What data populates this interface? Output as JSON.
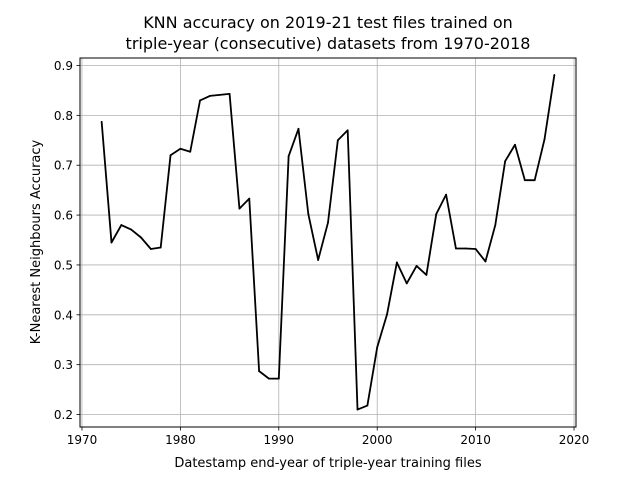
{
  "chart_data": {
    "type": "line",
    "title_lines": [
      "KNN accuracy on 2019-21 test files trained on",
      "triple-year (consecutive) datasets from 1970-2018"
    ],
    "xlabel": "Datestamp end-year of triple-year training files",
    "ylabel": "K-Nearest Neighbours Accuracy",
    "xlim": [
      1969.8,
      2020.2
    ],
    "ylim": [
      0.175,
      0.915
    ],
    "xticks": [
      1970,
      1980,
      1990,
      2000,
      2010,
      2020
    ],
    "xtick_labels": [
      "1970",
      "1980",
      "1990",
      "2000",
      "2010",
      "2020"
    ],
    "yticks": [
      0.2,
      0.3,
      0.4,
      0.5,
      0.6,
      0.7,
      0.8,
      0.9
    ],
    "ytick_labels": [
      "0.2",
      "0.3",
      "0.4",
      "0.5",
      "0.6",
      "0.7",
      "0.8",
      "0.9"
    ],
    "grid": true,
    "line_color": "#000000",
    "x": [
      1972,
      1973,
      1974,
      1975,
      1976,
      1977,
      1978,
      1979,
      1980,
      1981,
      1982,
      1983,
      1984,
      1985,
      1986,
      1987,
      1988,
      1989,
      1990,
      1991,
      1992,
      1993,
      1994,
      1995,
      1996,
      1997,
      1998,
      1999,
      2000,
      2001,
      2002,
      2003,
      2004,
      2005,
      2006,
      2007,
      2008,
      2009,
      2010,
      2011,
      2012,
      2013,
      2014,
      2015,
      2016,
      2017,
      2018
    ],
    "y": [
      0.787,
      0.545,
      0.58,
      0.571,
      0.555,
      0.532,
      0.535,
      0.72,
      0.733,
      0.727,
      0.83,
      0.839,
      0.841,
      0.843,
      0.613,
      0.633,
      0.287,
      0.272,
      0.272,
      0.718,
      0.773,
      0.602,
      0.51,
      0.585,
      0.75,
      0.77,
      0.21,
      0.218,
      0.335,
      0.401,
      0.505,
      0.463,
      0.498,
      0.48,
      0.602,
      0.641,
      0.533,
      0.533,
      0.532,
      0.507,
      0.58,
      0.708,
      0.741,
      0.67,
      0.67,
      0.752,
      0.881
    ]
  }
}
